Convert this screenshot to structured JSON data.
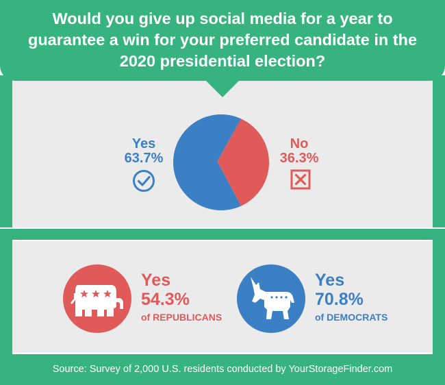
{
  "title": "Would you give up social media for a year to guarantee a win for your preferred candidate in the 2020 presidential election?",
  "colors": {
    "green": "#36b37e",
    "blue": "#3b7fc4",
    "red": "#e05a5a",
    "panel_gray": "#ebebeb",
    "white": "#ffffff"
  },
  "icons": {
    "yes": "check-circle-icon",
    "no": "x-box-icon",
    "republican": "republican-elephant-icon",
    "democrat": "democrat-donkey-icon"
  },
  "chart_data": {
    "type": "pie",
    "title": "Would you give up social media for a year to guarantee a win for your preferred candidate in the 2020 presidential election?",
    "slices": [
      {
        "label": "Yes",
        "value": 63.7,
        "display": "63.7%",
        "color": "#3b7fc4"
      },
      {
        "label": "No",
        "value": 36.3,
        "display": "36.3%",
        "color": "#e05a5a"
      }
    ]
  },
  "breakdown": {
    "republicans": {
      "answer": "Yes",
      "percent": "54.3%",
      "group": "of REPUBLICANS"
    },
    "democrats": {
      "answer": "Yes",
      "percent": "70.8%",
      "group": "of DEMOCRATS"
    }
  },
  "source": "Source: Survey of 2,000 U.S. residents conducted by YourStorageFinder.com"
}
